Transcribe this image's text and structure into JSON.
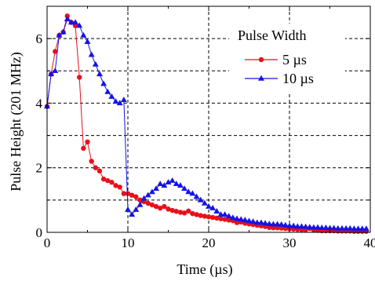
{
  "chart_data": {
    "type": "line",
    "xlabel": "Time (µs)",
    "ylabel": "Pulse Height (201 MHz)",
    "xlim": [
      0,
      40
    ],
    "ylim": [
      0,
      7
    ],
    "xticks": [
      0,
      10,
      20,
      30,
      40
    ],
    "yticks": [
      0,
      2,
      4,
      6
    ],
    "grid": true,
    "grid_style": "dashed",
    "legend_position": "top-right",
    "legend_title": "Pulse Width",
    "series": [
      {
        "name": "5 µs",
        "color": "#e8101a",
        "marker": "circle",
        "x": [
          0,
          0.5,
          1,
          1.5,
          2,
          2.5,
          3,
          3.5,
          4,
          4.5,
          5,
          5.5,
          6,
          6.5,
          7,
          7.5,
          8,
          8.5,
          9,
          9.5,
          10,
          10.5,
          11,
          11.5,
          12,
          12.5,
          13,
          13.5,
          14,
          14.5,
          15,
          15.5,
          16,
          16.5,
          17,
          17.5,
          18,
          18.5,
          19,
          19.5,
          20,
          20.5,
          21,
          21.5,
          22,
          22.5,
          23,
          23.5,
          24,
          24.5,
          25,
          25.5,
          26,
          26.5,
          27,
          27.5,
          28,
          28.5,
          29,
          29.5,
          30,
          30.5,
          31,
          31.5,
          32,
          32.5,
          33,
          33.5,
          34,
          34.5,
          35,
          35.5,
          36,
          36.5,
          37,
          37.5,
          38,
          38.5,
          39,
          39.5
        ],
        "values": [
          3.9,
          4.9,
          5.6,
          6.1,
          6.2,
          6.7,
          6.5,
          6.4,
          4.8,
          2.6,
          2.8,
          2.2,
          2.0,
          1.9,
          1.65,
          1.6,
          1.55,
          1.45,
          1.4,
          1.2,
          1.2,
          1.15,
          1.1,
          1.0,
          0.95,
          0.9,
          0.85,
          0.8,
          0.75,
          0.8,
          0.72,
          0.68,
          0.65,
          0.62,
          0.6,
          0.66,
          0.58,
          0.55,
          0.52,
          0.5,
          0.48,
          0.46,
          0.44,
          0.42,
          0.4,
          0.38,
          0.36,
          0.3,
          0.32,
          0.28,
          0.26,
          0.24,
          0.22,
          0.2,
          0.18,
          0.15,
          0.14,
          0.14,
          0.13,
          0.12,
          0.11,
          0.1,
          0.09,
          0.08,
          0.08,
          0.12,
          0.07,
          0.06,
          0.05,
          0.05,
          0.05,
          0.05,
          0.04,
          0.04,
          0.04,
          0.04,
          0.03,
          0.03,
          0.03,
          0.03
        ]
      },
      {
        "name": "10 µs",
        "color": "#1414e6",
        "marker": "triangle",
        "x": [
          0,
          0.5,
          1,
          1.5,
          2,
          2.5,
          3,
          3.5,
          4,
          4.5,
          5,
          5.5,
          6,
          6.5,
          7,
          7.5,
          8,
          8.5,
          9,
          9.5,
          10,
          10.5,
          11,
          11.5,
          12,
          12.5,
          13,
          13.5,
          14,
          14.5,
          15,
          15.5,
          16,
          16.5,
          17,
          17.5,
          18,
          18.5,
          19,
          19.5,
          20,
          20.5,
          21,
          21.5,
          22,
          22.5,
          23,
          23.5,
          24,
          24.5,
          25,
          25.5,
          26,
          26.5,
          27,
          27.5,
          28,
          28.5,
          29,
          29.5,
          30,
          30.5,
          31,
          31.5,
          32,
          32.5,
          33,
          33.5,
          34,
          34.5,
          35,
          35.5,
          36,
          36.5,
          37,
          37.5,
          38,
          38.5,
          39,
          39.5
        ],
        "values": [
          3.9,
          4.9,
          5.0,
          6.1,
          6.2,
          6.6,
          6.5,
          6.5,
          6.4,
          6.1,
          5.9,
          5.5,
          5.2,
          4.9,
          4.6,
          4.35,
          4.2,
          4.05,
          4.0,
          4.1,
          0.7,
          0.55,
          0.7,
          0.85,
          1.05,
          1.15,
          1.25,
          1.35,
          1.5,
          1.45,
          1.55,
          1.6,
          1.5,
          1.45,
          1.35,
          1.25,
          1.2,
          1.1,
          1.0,
          0.9,
          0.8,
          0.75,
          0.65,
          0.55,
          0.55,
          0.5,
          0.45,
          0.42,
          0.4,
          0.38,
          0.35,
          0.33,
          0.3,
          0.3,
          0.28,
          0.26,
          0.25,
          0.25,
          0.24,
          0.22,
          0.2,
          0.2,
          0.18,
          0.18,
          0.17,
          0.16,
          0.15,
          0.15,
          0.14,
          0.14,
          0.13,
          0.13,
          0.12,
          0.12,
          0.12,
          0.12,
          0.11,
          0.11,
          0.11,
          0.11
        ]
      }
    ]
  }
}
